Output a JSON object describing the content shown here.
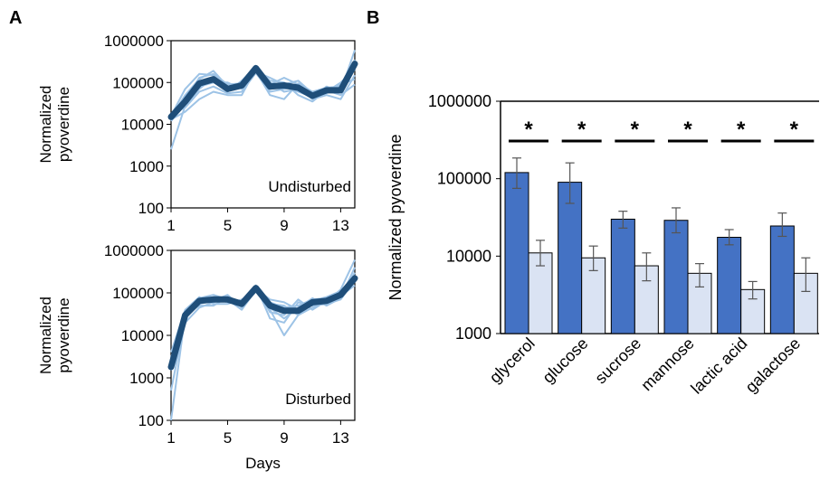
{
  "panel_labels": [
    "A",
    "B"
  ],
  "chart_data": [
    {
      "type": "line",
      "panel": "A",
      "ylabel": [
        "Normalized",
        "pyoverdine"
      ],
      "yscale": "log",
      "ylim": [
        100,
        1000000
      ],
      "yticks": [
        "100",
        "1000",
        "10000",
        "100000",
        "1000000"
      ],
      "xlim": [
        1,
        14
      ],
      "xticks": [
        "1",
        "5",
        "9",
        "13"
      ],
      "xlabel": "",
      "annotation": "Undisturbed",
      "x": [
        1,
        2,
        3,
        4,
        5,
        6,
        7,
        8,
        9,
        10,
        11,
        12,
        13,
        14
      ],
      "mean": [
        15000,
        35000,
        95000,
        120000,
        70000,
        85000,
        220000,
        80000,
        85000,
        75000,
        48000,
        65000,
        65000,
        280000
      ],
      "replicates": [
        [
          14000,
          40000,
          130000,
          160000,
          90000,
          95000,
          180000,
          130000,
          90000,
          110000,
          55000,
          70000,
          70000,
          350000
        ],
        [
          16000,
          70000,
          160000,
          150000,
          60000,
          110000,
          240000,
          70000,
          80000,
          60000,
          45000,
          80000,
          60000,
          600000
        ],
        [
          12000,
          30000,
          80000,
          100000,
          100000,
          70000,
          200000,
          90000,
          130000,
          90000,
          50000,
          60000,
          100000,
          200000
        ],
        [
          18000,
          25000,
          60000,
          80000,
          55000,
          60000,
          170000,
          60000,
          70000,
          80000,
          40000,
          50000,
          40000,
          150000
        ],
        [
          15000,
          50000,
          120000,
          190000,
          80000,
          90000,
          250000,
          100000,
          60000,
          70000,
          45000,
          55000,
          90000,
          120000
        ],
        [
          13000,
          20000,
          40000,
          60000,
          50000,
          50000,
          210000,
          110000,
          100000,
          50000,
          35000,
          65000,
          50000,
          90000
        ],
        [
          2500,
          28000,
          70000,
          130000,
          65000,
          75000,
          190000,
          50000,
          40000,
          95000,
          60000,
          75000,
          80000,
          300000
        ]
      ]
    },
    {
      "type": "line",
      "panel": "A",
      "ylabel": [
        "Normalized",
        "pyoverdine"
      ],
      "yscale": "log",
      "ylim": [
        100,
        1000000
      ],
      "yticks": [
        "100",
        "1000",
        "10000",
        "100000",
        "1000000"
      ],
      "xlim": [
        1,
        14
      ],
      "xticks": [
        "1",
        "5",
        "9",
        "13"
      ],
      "xlabel": "Days",
      "annotation": "Disturbed",
      "x": [
        1,
        2,
        3,
        4,
        5,
        6,
        7,
        8,
        9,
        10,
        11,
        12,
        13,
        14
      ],
      "mean": [
        1800,
        30000,
        65000,
        70000,
        70000,
        55000,
        130000,
        50000,
        38000,
        38000,
        60000,
        65000,
        90000,
        220000
      ],
      "replicates": [
        [
          2500,
          20000,
          45000,
          60000,
          75000,
          60000,
          140000,
          60000,
          45000,
          50000,
          70000,
          75000,
          100000,
          250000
        ],
        [
          3000,
          35000,
          70000,
          80000,
          65000,
          50000,
          120000,
          40000,
          10000,
          30000,
          55000,
          70000,
          80000,
          300000
        ],
        [
          4000,
          40000,
          80000,
          55000,
          55000,
          70000,
          110000,
          55000,
          50000,
          30000,
          45000,
          60000,
          120000,
          600000
        ],
        [
          100,
          30000,
          55000,
          65000,
          90000,
          45000,
          150000,
          25000,
          20000,
          60000,
          50000,
          55000,
          70000,
          200000
        ],
        [
          500,
          25000,
          60000,
          75000,
          60000,
          65000,
          125000,
          70000,
          60000,
          40000,
          65000,
          80000,
          110000,
          180000
        ],
        [
          2000,
          30000,
          50000,
          50000,
          80000,
          55000,
          135000,
          35000,
          30000,
          70000,
          40000,
          65000,
          85000,
          150000
        ],
        [
          1500,
          28000,
          75000,
          90000,
          70000,
          40000,
          115000,
          45000,
          25000,
          45000,
          75000,
          50000,
          75000,
          400000
        ]
      ]
    },
    {
      "type": "bar",
      "panel": "B",
      "ylabel": "Normalized pyoverdine",
      "yscale": "log",
      "ylim": [
        1000,
        1000000
      ],
      "yticks": [
        "1000",
        "10000",
        "100000",
        "1000000"
      ],
      "categories": [
        "glycerol",
        "glucose",
        "sucrose",
        "mannose",
        "lactic acid",
        "galactose"
      ],
      "series": [
        {
          "values": [
            120000,
            90000,
            30000,
            29000,
            17500,
            24500
          ],
          "error_low": [
            75000,
            48000,
            23000,
            20000,
            14000,
            18000
          ],
          "error_high": [
            185000,
            160000,
            38000,
            42000,
            22000,
            36000
          ]
        },
        {
          "values": [
            11000,
            9500,
            7500,
            6000,
            3700,
            6000
          ],
          "error_low": [
            7500,
            6500,
            4800,
            4000,
            2800,
            3500
          ],
          "error_high": [
            16000,
            13500,
            11000,
            8000,
            4700,
            9500
          ]
        }
      ],
      "significance_marker": "*",
      "colors": {
        "series1": "#4472C4",
        "series2": "#DAE3F3",
        "edge": "#000000",
        "error": "#555555"
      }
    }
  ],
  "colors": {
    "line_mean": "#1F4E79",
    "line_replicate": "#9DC3E6"
  }
}
